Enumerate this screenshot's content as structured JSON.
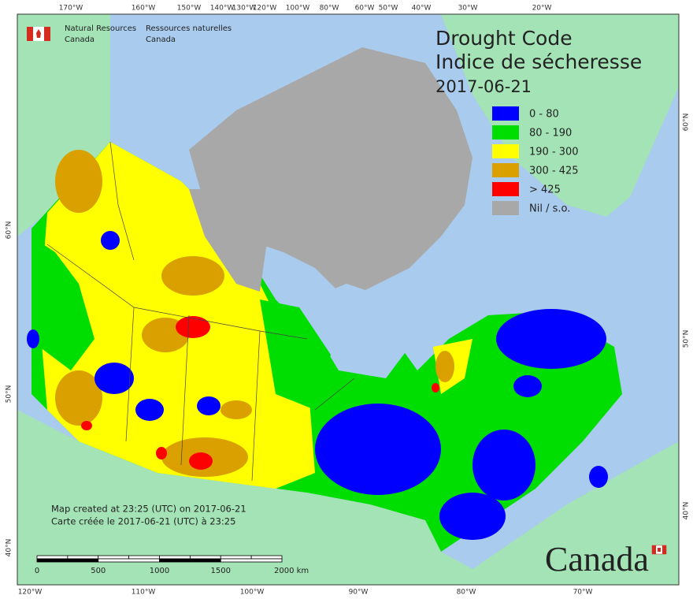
{
  "agency": {
    "english": [
      "Natural Resources",
      "Canada"
    ],
    "french": [
      "Ressources naturelles",
      "Canada"
    ]
  },
  "title": {
    "line1": "Drought Code",
    "line2": "Indice de sécheresse",
    "date": "2017-06-21"
  },
  "legend": [
    {
      "label": "0 - 80",
      "color": "#0000ff"
    },
    {
      "label": "80 - 190",
      "color": "#00dd00"
    },
    {
      "label": "190 - 300",
      "color": "#ffff00"
    },
    {
      "label": "300 - 425",
      "color": "#d9a000"
    },
    {
      "label": "> 425",
      "color": "#ff0000"
    },
    {
      "label": "Nil / s.o.",
      "color": "#a8a8a8"
    }
  ],
  "graticule": {
    "top": [
      "170°W",
      "160°W",
      "150°W",
      "140°W",
      "130°W",
      "120°W",
      "100°W",
      "80°W",
      "60°W",
      "50°W",
      "40°W",
      "30°W",
      "20°W"
    ],
    "bottom": [
      "120°W",
      "110°W",
      "100°W",
      "90°W",
      "80°W",
      "70°W"
    ],
    "left": [
      "60°N",
      "50°N",
      "40°N"
    ],
    "right": [
      "60°N",
      "50°N",
      "40°N"
    ]
  },
  "credits": [
    "Map created at 23:25 (UTC) on 2017-06-21",
    "Carte créée le 2017-06-21 (UTC) à 23:25"
  ],
  "scale_bar": [
    "0",
    "500",
    "1000",
    "1500",
    "2000 km"
  ],
  "wordmark": "Canada"
}
